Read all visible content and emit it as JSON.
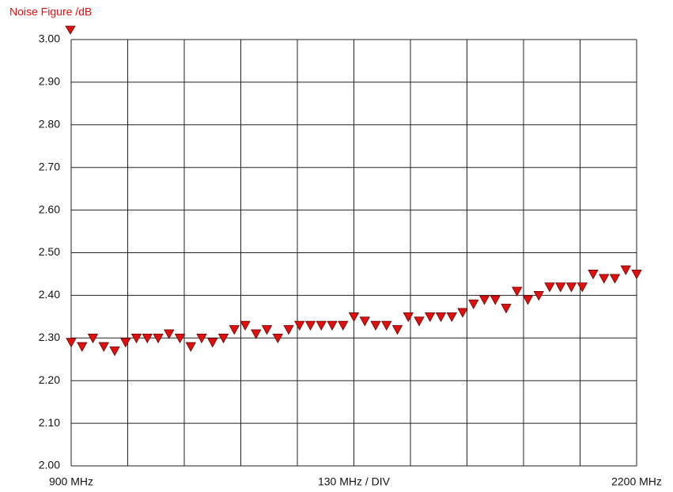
{
  "chart_data": {
    "type": "scatter",
    "title": "Noise Figure /dB",
    "color": "#e01010",
    "x": [
      900,
      925,
      950,
      975,
      1000,
      1025,
      1050,
      1075,
      1100,
      1125,
      1150,
      1175,
      1200,
      1225,
      1250,
      1275,
      1300,
      1325,
      1350,
      1375,
      1400,
      1425,
      1450,
      1475,
      1500,
      1525,
      1550,
      1575,
      1600,
      1625,
      1650,
      1675,
      1700,
      1725,
      1750,
      1775,
      1800,
      1825,
      1850,
      1875,
      1900,
      1925,
      1950,
      1975,
      2000,
      2025,
      2050,
      2075,
      2100,
      2125,
      2150,
      2175,
      2200
    ],
    "values": [
      2.29,
      2.28,
      2.3,
      2.28,
      2.27,
      2.29,
      2.3,
      2.3,
      2.3,
      2.31,
      2.3,
      2.28,
      2.3,
      2.29,
      2.3,
      2.32,
      2.33,
      2.31,
      2.32,
      2.3,
      2.32,
      2.33,
      2.33,
      2.33,
      2.33,
      2.33,
      2.35,
      2.34,
      2.33,
      2.33,
      2.32,
      2.35,
      2.34,
      2.35,
      2.35,
      2.35,
      2.36,
      2.38,
      2.39,
      2.39,
      2.37,
      2.41,
      2.39,
      2.4,
      2.42,
      2.42,
      2.42,
      2.42,
      2.45,
      2.44,
      2.44,
      2.46,
      2.45
    ],
    "xlim": [
      900,
      2200
    ],
    "xticks": [
      {
        "value": 900,
        "label": "900 MHz"
      },
      {
        "value": 2200,
        "label": "2200 MHz"
      }
    ],
    "x_division": {
      "value": 130,
      "label": "130 MHz / DIV"
    },
    "ylim": [
      2.0,
      3.0
    ],
    "yticks": [
      {
        "value": 2.0,
        "label": "2.00"
      },
      {
        "value": 2.1,
        "label": "2.10"
      },
      {
        "value": 2.2,
        "label": "2.20"
      },
      {
        "value": 2.3,
        "label": "2.30"
      },
      {
        "value": 2.4,
        "label": "2.40"
      },
      {
        "value": 2.5,
        "label": "2.50"
      },
      {
        "value": 2.6,
        "label": "2.60"
      },
      {
        "value": 2.7,
        "label": "2.70"
      },
      {
        "value": 2.8,
        "label": "2.80"
      },
      {
        "value": 2.9,
        "label": "2.90"
      },
      {
        "value": 3.0,
        "label": "3.00"
      }
    ],
    "grid": true
  }
}
